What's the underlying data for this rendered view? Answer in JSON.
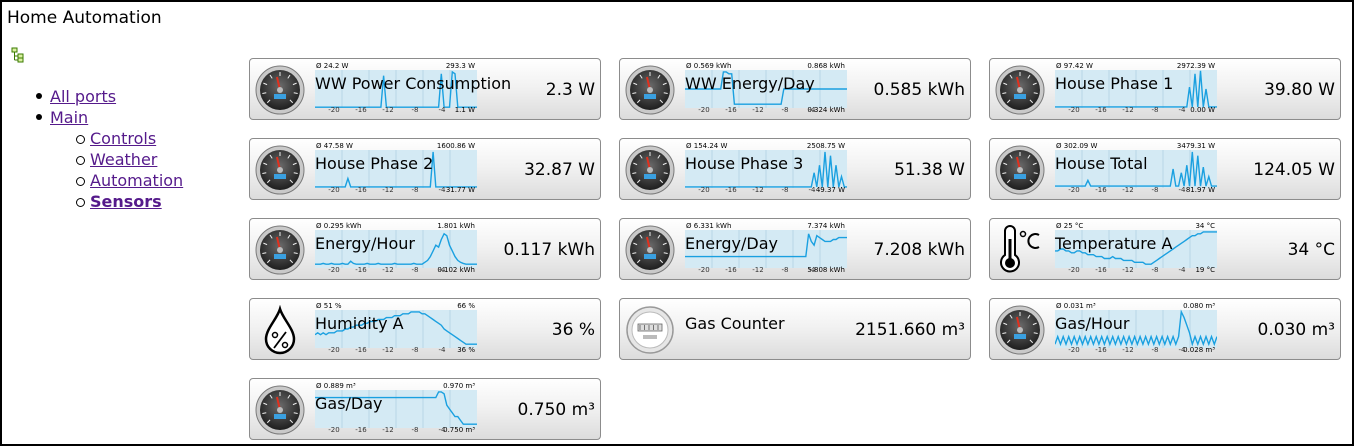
{
  "app": {
    "title": "Home Automation"
  },
  "nav": {
    "items": [
      {
        "label": "All ports"
      },
      {
        "label": "Main",
        "children": [
          {
            "label": "Controls"
          },
          {
            "label": "Weather"
          },
          {
            "label": "Automation"
          },
          {
            "label": "Sensors",
            "active": true
          }
        ]
      }
    ]
  },
  "tiles": [
    {
      "name": "WW Power Consumption",
      "value": "2.3 W",
      "icon": "gauge-icon",
      "avg": "Ø 24.2 W",
      "max": "293.3 W",
      "min": "1.1 W",
      "ticks": [
        "-20",
        "-16",
        "-12",
        "-8",
        "-4"
      ],
      "series": [
        0.02,
        0.02,
        0.02,
        0.02,
        0.02,
        0.02,
        0.02,
        0.02,
        0.02,
        0.02,
        0.02,
        0.02,
        0.02,
        0.02,
        0.02,
        0.02,
        0.02,
        0.02,
        0.02,
        0.02,
        0.02,
        0.02,
        0.02,
        0.02,
        0.02,
        0.85,
        0.02,
        0.02,
        0.02,
        0.02,
        0.02,
        0.02,
        0.02,
        0.02,
        0.02,
        0.02,
        0.02,
        0.02,
        0.02,
        0.02,
        0.02,
        0.02,
        0.02,
        0.02,
        0.02,
        0.02,
        0.9,
        0.02,
        0.02,
        0.02,
        0.95,
        0.9,
        0.02,
        0.02,
        0.02,
        0.02,
        0.02,
        0.02,
        0.02,
        0.02
      ]
    },
    {
      "name": "WW Energy/Day",
      "value": "0.585 kWh",
      "icon": "gauge-icon",
      "avg": "Ø 0.569 kWh",
      "max": "0.868 kWh",
      "min": "0.324 kWh",
      "ticks": [
        "-20",
        "-16",
        "-12",
        "-8",
        "-4"
      ],
      "series": [
        0.5,
        0.5,
        0.5,
        0.5,
        0.5,
        0.5,
        0.5,
        0.5,
        0.5,
        0.5,
        0.5,
        0.5,
        0.5,
        0.5,
        0.95,
        0.95,
        0.9,
        0.9,
        0.1,
        0.1,
        0.1,
        0.1,
        0.1,
        0.1,
        0.1,
        0.1,
        0.1,
        0.1,
        0.1,
        0.1,
        0.1,
        0.1,
        0.1,
        0.1,
        0.1,
        0.1,
        0.5,
        0.5,
        0.5,
        0.5,
        0.5,
        0.5,
        0.5,
        0.5,
        0.5,
        0.5,
        0.5,
        0.5,
        0.5,
        0.5,
        0.5,
        0.5,
        0.5,
        0.5,
        0.5,
        0.5,
        0.5,
        0.5,
        0.5,
        0.5
      ]
    },
    {
      "name": "House Phase 1",
      "value": "39.80 W",
      "icon": "gauge-icon",
      "avg": "Ø 97.42 W",
      "max": "2972.39 W",
      "min": "0.00 W",
      "ticks": [
        "-20",
        "-16",
        "-12",
        "-8",
        "-4"
      ],
      "series": [
        0.03,
        0.03,
        0.03,
        0.03,
        0.03,
        0.03,
        0.03,
        0.03,
        0.03,
        0.03,
        0.03,
        0.03,
        0.03,
        0.03,
        0.03,
        0.03,
        0.03,
        0.03,
        0.03,
        0.03,
        0.03,
        0.03,
        0.03,
        0.03,
        0.03,
        0.03,
        0.03,
        0.03,
        0.03,
        0.03,
        0.03,
        0.03,
        0.03,
        0.03,
        0.03,
        0.03,
        0.03,
        0.03,
        0.03,
        0.03,
        0.03,
        0.03,
        0.03,
        0.03,
        0.03,
        0.03,
        0.03,
        0.03,
        0.03,
        0.55,
        0.03,
        0.9,
        0.03,
        0.98,
        0.03,
        0.5,
        0.03,
        0.03,
        0.03,
        0.03
      ]
    },
    {
      "name": "House Phase 2",
      "value": "32.87 W",
      "icon": "gauge-icon",
      "avg": "Ø 47.58 W",
      "max": "1600.86 W",
      "min": "31.77 W",
      "ticks": [
        "-20",
        "-16",
        "-12",
        "-8",
        "-4"
      ],
      "series": [
        0.03,
        0.03,
        0.03,
        0.03,
        0.03,
        0.03,
        0.03,
        0.03,
        0.03,
        0.03,
        0.03,
        0.03,
        0.25,
        0.03,
        0.03,
        0.03,
        0.03,
        0.03,
        0.03,
        0.03,
        0.03,
        0.03,
        0.03,
        0.03,
        0.03,
        0.03,
        0.03,
        0.03,
        0.03,
        0.03,
        0.03,
        0.03,
        0.03,
        0.03,
        0.03,
        0.03,
        0.03,
        0.03,
        0.03,
        0.03,
        0.03,
        0.03,
        0.03,
        0.95,
        0.03,
        0.03,
        0.03,
        0.03,
        0.03,
        0.03,
        0.03,
        0.03,
        0.03,
        0.03,
        0.03,
        0.03,
        0.03,
        0.03,
        0.03,
        0.03
      ]
    },
    {
      "name": "House Phase 3",
      "value": "51.38 W",
      "icon": "gauge-icon",
      "avg": "Ø 154.24 W",
      "max": "2508.75 W",
      "min": "49.37 W",
      "ticks": [
        "-20",
        "-16",
        "-12",
        "-8",
        "-4"
      ],
      "series": [
        0.03,
        0.03,
        0.03,
        0.03,
        0.03,
        0.03,
        0.03,
        0.03,
        0.03,
        0.03,
        0.03,
        0.03,
        0.03,
        0.03,
        0.03,
        0.03,
        0.03,
        0.03,
        0.03,
        0.03,
        0.03,
        0.03,
        0.03,
        0.03,
        0.03,
        0.03,
        0.03,
        0.03,
        0.03,
        0.03,
        0.03,
        0.03,
        0.03,
        0.03,
        0.03,
        0.03,
        0.03,
        0.03,
        0.03,
        0.03,
        0.03,
        0.03,
        0.03,
        0.03,
        0.03,
        0.03,
        0.03,
        0.4,
        0.03,
        0.6,
        0.03,
        0.95,
        0.03,
        0.85,
        0.03,
        0.6,
        0.03,
        0.3,
        0.03,
        0.03
      ]
    },
    {
      "name": "House Total",
      "value": "124.05 W",
      "icon": "gauge-icon",
      "avg": "Ø 302.09 W",
      "max": "3479.31 W",
      "min": "81.97 W",
      "ticks": [
        "-20",
        "-16",
        "-12",
        "-8",
        "-4"
      ],
      "series": [
        0.05,
        0.05,
        0.05,
        0.05,
        0.05,
        0.05,
        0.05,
        0.05,
        0.05,
        0.05,
        0.05,
        0.05,
        0.2,
        0.05,
        0.05,
        0.05,
        0.05,
        0.05,
        0.05,
        0.05,
        0.05,
        0.05,
        0.05,
        0.05,
        0.05,
        0.05,
        0.05,
        0.05,
        0.05,
        0.05,
        0.05,
        0.05,
        0.05,
        0.05,
        0.05,
        0.05,
        0.05,
        0.05,
        0.05,
        0.05,
        0.05,
        0.05,
        0.05,
        0.5,
        0.05,
        0.05,
        0.4,
        0.05,
        0.6,
        0.05,
        0.95,
        0.05,
        0.85,
        0.05,
        0.55,
        0.05,
        0.3,
        0.05,
        0.05,
        0.05
      ]
    },
    {
      "name": "Energy/Hour",
      "value": "0.117 kWh",
      "icon": "gauge-icon",
      "avg": "Ø 0.295 kWh",
      "max": "1.801 kWh",
      "min": "0.102 kWh",
      "ticks": [
        "-20",
        "-16",
        "-12",
        "-8",
        "-4"
      ],
      "series": [
        0.1,
        0.1,
        0.1,
        0.12,
        0.1,
        0.1,
        0.12,
        0.1,
        0.1,
        0.1,
        0.12,
        0.1,
        0.1,
        0.18,
        0.12,
        0.1,
        0.1,
        0.1,
        0.1,
        0.12,
        0.1,
        0.1,
        0.1,
        0.12,
        0.1,
        0.1,
        0.1,
        0.1,
        0.1,
        0.12,
        0.1,
        0.1,
        0.1,
        0.1,
        0.1,
        0.1,
        0.12,
        0.1,
        0.1,
        0.1,
        0.15,
        0.2,
        0.3,
        0.45,
        0.6,
        0.55,
        0.75,
        0.9,
        0.85,
        0.6,
        0.45,
        0.3,
        0.2,
        0.15,
        0.12,
        0.1,
        0.1,
        0.1,
        0.1,
        0.1
      ]
    },
    {
      "name": "Energy/Day",
      "value": "7.208 kWh",
      "icon": "gauge-icon",
      "avg": "Ø 6.331 kWh",
      "max": "7.374 kWh",
      "min": "5.808 kWh",
      "ticks": [
        "-20",
        "-16",
        "-12",
        "-8",
        "-4"
      ],
      "series": [
        0.3,
        0.3,
        0.3,
        0.3,
        0.3,
        0.3,
        0.3,
        0.3,
        0.3,
        0.3,
        0.3,
        0.3,
        0.3,
        0.3,
        0.3,
        0.3,
        0.3,
        0.3,
        0.3,
        0.3,
        0.3,
        0.3,
        0.3,
        0.3,
        0.3,
        0.3,
        0.3,
        0.3,
        0.3,
        0.3,
        0.3,
        0.3,
        0.3,
        0.3,
        0.3,
        0.3,
        0.3,
        0.3,
        0.3,
        0.3,
        0.3,
        0.3,
        0.3,
        0.3,
        0.3,
        0.9,
        0.7,
        0.6,
        0.85,
        0.8,
        0.75,
        0.7,
        0.7,
        0.7,
        0.75,
        0.75,
        0.8,
        0.8,
        0.8,
        0.8
      ]
    },
    {
      "name": "Temperature A",
      "value": "34 °C",
      "icon": "thermometer-icon",
      "avg": "Ø 25 °C",
      "max": "34 °C",
      "min": "19 °C",
      "ticks": [
        "-20",
        "-16",
        "-12",
        "-8",
        "-4"
      ],
      "series": [
        0.45,
        0.45,
        0.5,
        0.5,
        0.45,
        0.45,
        0.4,
        0.4,
        0.45,
        0.45,
        0.4,
        0.4,
        0.35,
        0.35,
        0.35,
        0.3,
        0.3,
        0.3,
        0.25,
        0.25,
        0.25,
        0.3,
        0.25,
        0.25,
        0.25,
        0.2,
        0.2,
        0.2,
        0.2,
        0.15,
        0.15,
        0.15,
        0.15,
        0.1,
        0.1,
        0.1,
        0.15,
        0.2,
        0.25,
        0.3,
        0.35,
        0.4,
        0.45,
        0.5,
        0.55,
        0.6,
        0.65,
        0.7,
        0.75,
        0.8,
        0.85,
        0.85,
        0.9,
        0.9,
        0.95,
        0.95,
        0.95,
        0.95,
        0.95,
        0.95
      ]
    },
    {
      "name": "Humidity A",
      "value": "36 %",
      "icon": "water-drop-icon",
      "avg": "Ø 51 %",
      "max": "66 %",
      "min": "36 %",
      "ticks": [
        "-20",
        "-16",
        "-12",
        "-8",
        "-4"
      ],
      "series": [
        0.35,
        0.4,
        0.35,
        0.4,
        0.35,
        0.4,
        0.4,
        0.4,
        0.45,
        0.45,
        0.45,
        0.5,
        0.5,
        0.55,
        0.55,
        0.6,
        0.6,
        0.6,
        0.65,
        0.65,
        0.7,
        0.7,
        0.7,
        0.75,
        0.75,
        0.75,
        0.8,
        0.8,
        0.8,
        0.85,
        0.85,
        0.85,
        0.9,
        0.9,
        0.9,
        0.95,
        0.95,
        0.95,
        0.95,
        0.9,
        0.9,
        0.85,
        0.8,
        0.75,
        0.7,
        0.65,
        0.6,
        0.5,
        0.45,
        0.4,
        0.35,
        0.3,
        0.25,
        0.2,
        0.15,
        0.1,
        0.1,
        0.1,
        0.1,
        0.1
      ]
    },
    {
      "name": "Gas Counter",
      "value": "2151.660 m³",
      "icon": "gas-meter-icon"
    },
    {
      "name": "Gas/Hour",
      "value": "0.030 m³",
      "icon": "gauge-icon",
      "avg": "Ø 0.031 m³",
      "max": "0.080 m³",
      "min": "0.028 m³",
      "ticks": [
        "-20",
        "-16",
        "-12",
        "-8",
        "-4"
      ],
      "series": [
        0.1,
        0.3,
        0.1,
        0.3,
        0.1,
        0.3,
        0.1,
        0.3,
        0.1,
        0.3,
        0.1,
        0.3,
        0.1,
        0.3,
        0.1,
        0.3,
        0.1,
        0.3,
        0.1,
        0.3,
        0.1,
        0.3,
        0.1,
        0.3,
        0.1,
        0.3,
        0.1,
        0.3,
        0.1,
        0.3,
        0.1,
        0.3,
        0.1,
        0.3,
        0.1,
        0.3,
        0.1,
        0.3,
        0.1,
        0.3,
        0.1,
        0.3,
        0.1,
        0.3,
        0.1,
        0.3,
        0.95,
        0.8,
        0.6,
        0.4,
        0.1,
        0.3,
        0.1,
        0.3,
        0.1,
        0.3,
        0.1,
        0.3,
        0.1,
        0.3
      ]
    },
    {
      "name": "Gas/Day",
      "value": "0.750 m³",
      "icon": "gauge-icon",
      "avg": "Ø 0.889 m³",
      "max": "0.970 m³",
      "min": "0.750 m³",
      "ticks": [
        "-20",
        "-16",
        "-12",
        "-8",
        "-4"
      ],
      "series": [
        0.8,
        0.8,
        0.8,
        0.8,
        0.8,
        0.8,
        0.8,
        0.8,
        0.8,
        0.8,
        0.8,
        0.8,
        0.8,
        0.8,
        0.8,
        0.8,
        0.8,
        0.8,
        0.8,
        0.8,
        0.8,
        0.8,
        0.8,
        0.8,
        0.8,
        0.8,
        0.8,
        0.8,
        0.8,
        0.8,
        0.8,
        0.8,
        0.8,
        0.8,
        0.8,
        0.8,
        0.8,
        0.8,
        0.8,
        0.8,
        0.8,
        0.8,
        0.8,
        0.8,
        0.8,
        0.95,
        0.95,
        0.9,
        0.6,
        0.5,
        0.4,
        0.3,
        0.3,
        0.2,
        0.1,
        0.1,
        0.1,
        0.1,
        0.1,
        0.1
      ]
    }
  ]
}
